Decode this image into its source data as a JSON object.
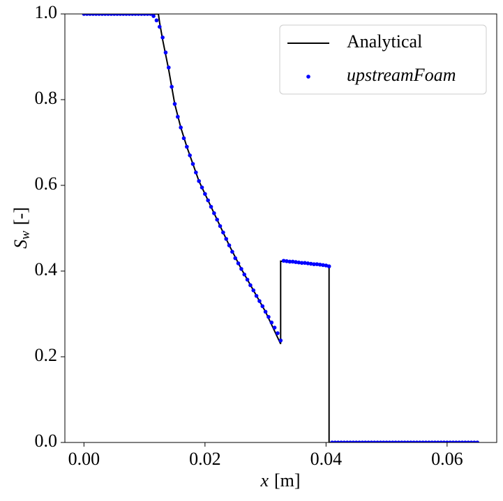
{
  "chart_data": {
    "type": "line",
    "xlabel": {
      "symbol": "x",
      "unit": "[m]"
    },
    "ylabel": {
      "symbol": "S",
      "subscript": "w",
      "unit": "[-]"
    },
    "xlim": [
      -0.00315,
      0.0682
    ],
    "ylim": [
      0,
      1
    ],
    "xticks": [
      {
        "value": 0,
        "label": "0.00"
      },
      {
        "value": 0.02,
        "label": "0.02"
      },
      {
        "value": 0.04,
        "label": "0.04"
      },
      {
        "value": 0.06,
        "label": "0.06"
      }
    ],
    "yticks": [
      {
        "value": 0,
        "label": "0.0"
      },
      {
        "value": 0.2,
        "label": "0.2"
      },
      {
        "value": 0.4,
        "label": "0.4"
      },
      {
        "value": 0.6,
        "label": "0.6"
      },
      {
        "value": 0.8,
        "label": "0.8"
      },
      {
        "value": 1,
        "label": "1.0"
      }
    ],
    "legend": "upper right",
    "series": [
      {
        "name": "Analytical",
        "color": "#000000",
        "style": "line",
        "x": [
          0,
          0.0123,
          0.0125,
          0.013,
          0.0135,
          0.014,
          0.0145,
          0.015,
          0.016,
          0.017,
          0.018,
          0.019,
          0.02,
          0.022,
          0.024,
          0.026,
          0.028,
          0.03,
          0.0325,
          0.0325,
          0.0405,
          0.0405,
          0.065
        ],
        "values": [
          1,
          1,
          0.98,
          0.94,
          0.905,
          0.87,
          0.83,
          0.79,
          0.735,
          0.69,
          0.65,
          0.61,
          0.58,
          0.52,
          0.46,
          0.405,
          0.355,
          0.305,
          0.23,
          0.423,
          0.413,
          0,
          0
        ]
      },
      {
        "name": "upstreamFoam",
        "color": "#0000ff",
        "style": "markers",
        "x": [
          0,
          0.0005,
          0.001,
          0.0015,
          0.002,
          0.0025,
          0.003,
          0.0035,
          0.004,
          0.0045,
          0.005,
          0.0055,
          0.006,
          0.0065,
          0.007,
          0.0075,
          0.008,
          0.0085,
          0.009,
          0.0095,
          0.01,
          0.0105,
          0.011,
          0.0115,
          0.012,
          0.0125,
          0.013,
          0.0135,
          0.014,
          0.0145,
          0.015,
          0.0155,
          0.016,
          0.0165,
          0.017,
          0.0175,
          0.018,
          0.0185,
          0.019,
          0.0195,
          0.02,
          0.0205,
          0.021,
          0.0215,
          0.022,
          0.0225,
          0.023,
          0.0235,
          0.024,
          0.0245,
          0.025,
          0.0255,
          0.026,
          0.0265,
          0.027,
          0.0275,
          0.028,
          0.0285,
          0.029,
          0.0295,
          0.03,
          0.0305,
          0.031,
          0.0315,
          0.032,
          0.0325,
          0.033,
          0.0335,
          0.034,
          0.0345,
          0.035,
          0.0355,
          0.036,
          0.0365,
          0.037,
          0.0375,
          0.038,
          0.0385,
          0.039,
          0.0395,
          0.04,
          0.0405,
          0.041,
          0.0415,
          0.042,
          0.0425,
          0.043,
          0.0435,
          0.044,
          0.0445,
          0.045,
          0.0455,
          0.046,
          0.0465,
          0.047,
          0.0475,
          0.048,
          0.0485,
          0.049,
          0.0495,
          0.05,
          0.0505,
          0.051,
          0.0515,
          0.052,
          0.0525,
          0.053,
          0.0535,
          0.054,
          0.0545,
          0.055,
          0.0555,
          0.056,
          0.0565,
          0.057,
          0.0575,
          0.058,
          0.0585,
          0.059,
          0.0595,
          0.06,
          0.0605,
          0.061,
          0.0615,
          0.062,
          0.0625,
          0.063,
          0.0635,
          0.064,
          0.0645,
          0.065
        ],
        "values": [
          1,
          1,
          1,
          1,
          1,
          1,
          1,
          1,
          1,
          1,
          1,
          1,
          1,
          1,
          1,
          1,
          1,
          1,
          1,
          1,
          1,
          1,
          1,
          0.995,
          0.985,
          0.97,
          0.945,
          0.91,
          0.875,
          0.83,
          0.79,
          0.76,
          0.735,
          0.71,
          0.69,
          0.67,
          0.65,
          0.63,
          0.61,
          0.595,
          0.58,
          0.565,
          0.55,
          0.535,
          0.52,
          0.505,
          0.49,
          0.475,
          0.46,
          0.445,
          0.43,
          0.418,
          0.405,
          0.392,
          0.38,
          0.367,
          0.355,
          0.342,
          0.33,
          0.318,
          0.305,
          0.293,
          0.28,
          0.268,
          0.255,
          0.238,
          0.424,
          0.423,
          0.422,
          0.422,
          0.421,
          0.42,
          0.419,
          0.419,
          0.418,
          0.417,
          0.416,
          0.416,
          0.415,
          0.414,
          0.413,
          0.411,
          0,
          0,
          0,
          0,
          0,
          0,
          0,
          0,
          0,
          0,
          0,
          0,
          0,
          0,
          0,
          0,
          0,
          0,
          0,
          0,
          0,
          0,
          0,
          0,
          0,
          0,
          0,
          0,
          0,
          0,
          0,
          0,
          0,
          0,
          0,
          0,
          0,
          0,
          0,
          0,
          0,
          0,
          0,
          0,
          0,
          0,
          0,
          0,
          0
        ]
      }
    ]
  }
}
